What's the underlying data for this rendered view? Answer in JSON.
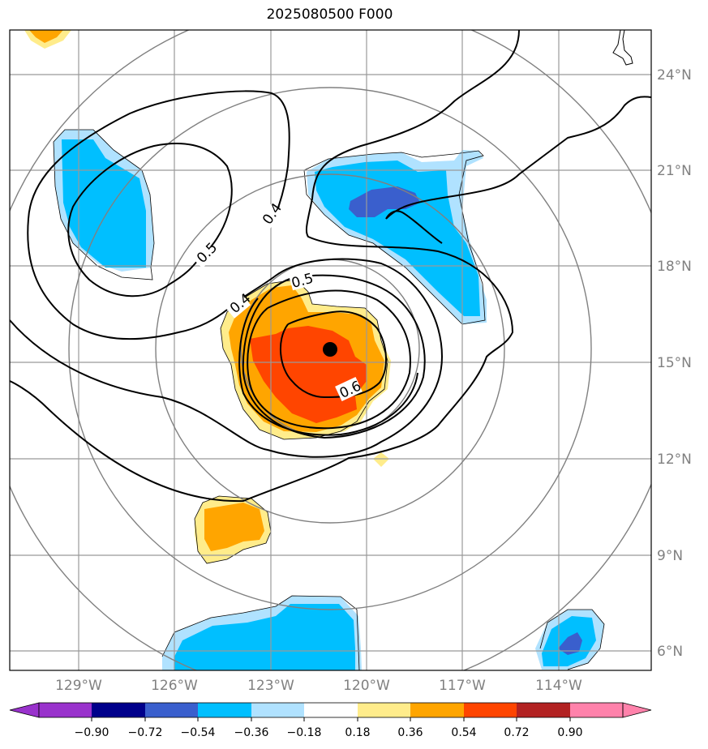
{
  "title": "2025080500 F000",
  "latitude_labels": [
    "24°N",
    "21°N",
    "18°N",
    "15°N",
    "12°N",
    "9°N",
    "6°N"
  ],
  "longitude_labels": [
    "129°W",
    "126°W",
    "123°W",
    "120°W",
    "117°W",
    "114°W"
  ],
  "contour_labels": [
    "0.4",
    "0.5",
    "0.4",
    "0.5",
    "0.6"
  ],
  "colorbar": {
    "tick_labels": [
      "−0.90",
      "−0.72",
      "−0.54",
      "−0.36",
      "−0.18",
      "0.18",
      "0.36",
      "0.54",
      "0.72",
      "0.90"
    ],
    "colors": [
      "#9932cc",
      "#00008b",
      "#3a5fcd",
      "#00bfff",
      "#b0e2ff",
      "#ffffff",
      "#ffec8b",
      "#ffa500",
      "#ff4500",
      "#b22222",
      "#ff82ab"
    ]
  },
  "storm_center_marker": "filled-black-circle",
  "fill_colors": {
    "light_blue": "#b0e2ff",
    "blue": "#00bfff",
    "dark_blue": "#3a5fcd",
    "light_yellow": "#ffec8b",
    "orange": "#ffa500",
    "red_orange": "#ff4500"
  }
}
